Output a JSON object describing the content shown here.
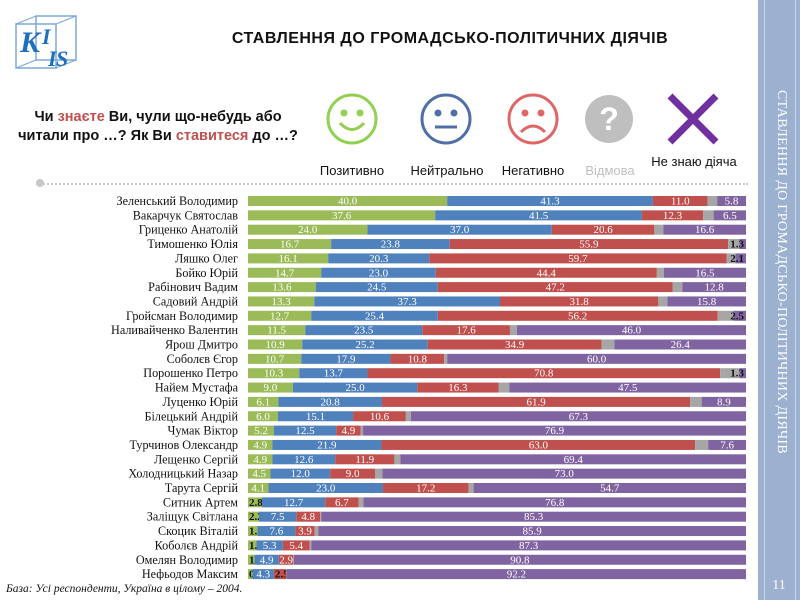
{
  "header": {
    "title": "СТАВЛЕННЯ ДО ГРОМАДСЬКО-ПОЛІТИЧНИХ ДІЯЧІВ"
  },
  "sidebar": {
    "text": "СТАВЛЕННЯ ДО ГРОМАДСЬКО-ПОЛІТИЧНИХ ДІЯЧІВ",
    "page_number": "11"
  },
  "logo": {
    "text": "KIIS"
  },
  "question": {
    "part1": "Чи ",
    "hl1": "знаєте",
    "part2": " Ви, чули що-небудь або читали про …? Як Ви ",
    "hl2": "ставитеся",
    "part3": " до …?"
  },
  "footnote": "База: Усі респонденти, Україна в цілому – 2004.",
  "colors": {
    "positive": "#9bbb59",
    "neutral": "#4f81bd",
    "negative": "#c0504d",
    "refuse": "#a6a6a6",
    "dontknow": "#8064a2",
    "face_positive": "#92d050",
    "face_neutral": "#4f6fa8",
    "face_negative": "#e06666",
    "face_refuse": "#bfbfbf",
    "face_dontknow": "#7030a0"
  },
  "chart_data": {
    "type": "bar",
    "orientation": "horizontal",
    "stacked": true,
    "xlim": [
      0,
      100
    ],
    "legend": [
      {
        "key": "positive",
        "label": "Позитивно",
        "icon": "smile-face-icon"
      },
      {
        "key": "neutral",
        "label": "Нейтрально",
        "icon": "neutral-face-icon"
      },
      {
        "key": "negative",
        "label": "Негативно",
        "icon": "sad-face-icon"
      },
      {
        "key": "refuse",
        "label": "Відмова",
        "icon": "question-mark-icon"
      },
      {
        "key": "dontknow",
        "label": "Не знаю діяча",
        "icon": "cross-icon"
      }
    ],
    "rows": [
      {
        "name": "Зеленський Володимир",
        "positive": 40.0,
        "neutral": 41.3,
        "negative": 11.0,
        "refuse": 1.9,
        "dontknow": 5.8
      },
      {
        "name": "Вакарчук Святослав",
        "positive": 37.6,
        "neutral": 41.5,
        "negative": 12.3,
        "refuse": 2.1,
        "dontknow": 6.5
      },
      {
        "name": "Гриценко Анатолій",
        "positive": 24.0,
        "neutral": 37.0,
        "negative": 20.6,
        "refuse": 1.8,
        "dontknow": 16.6
      },
      {
        "name": "Тимошенко Юлія",
        "positive": 16.7,
        "neutral": 23.8,
        "negative": 55.9,
        "refuse": 2.3,
        "dontknow": 1.3
      },
      {
        "name": "Ляшко Олег",
        "positive": 16.1,
        "neutral": 20.3,
        "negative": 59.7,
        "refuse": 1.8,
        "dontknow": 2.1
      },
      {
        "name": "Бойко Юрій",
        "positive": 14.7,
        "neutral": 23.0,
        "negative": 44.4,
        "refuse": 1.4,
        "dontknow": 16.5
      },
      {
        "name": "Рабінович Вадим",
        "positive": 13.6,
        "neutral": 24.5,
        "negative": 47.2,
        "refuse": 1.9,
        "dontknow": 12.8
      },
      {
        "name": "Садовий Андрій",
        "positive": 13.3,
        "neutral": 37.3,
        "negative": 31.8,
        "refuse": 1.8,
        "dontknow": 15.8
      },
      {
        "name": "Гройсман Володимир",
        "positive": 12.7,
        "neutral": 25.4,
        "negative": 56.2,
        "refuse": 3.2,
        "dontknow": 2.5
      },
      {
        "name": "Наливайченко Валентин",
        "positive": 11.5,
        "neutral": 23.5,
        "negative": 17.6,
        "refuse": 1.4,
        "dontknow": 46.0
      },
      {
        "name": "Ярош Дмитро",
        "positive": 10.9,
        "neutral": 25.2,
        "negative": 34.9,
        "refuse": 2.6,
        "dontknow": 26.4
      },
      {
        "name": "Соболєв Єгор",
        "positive": 10.7,
        "neutral": 17.9,
        "negative": 10.8,
        "refuse": 0.6,
        "dontknow": 60.0
      },
      {
        "name": "Порошенко Петро",
        "positive": 10.3,
        "neutral": 13.7,
        "negative": 70.8,
        "refuse": 3.9,
        "dontknow": 1.3
      },
      {
        "name": "Найем Мустафа",
        "positive": 9.0,
        "neutral": 25.0,
        "negative": 16.3,
        "refuse": 2.2,
        "dontknow": 47.5
      },
      {
        "name": "Луценко Юрій",
        "positive": 6.1,
        "neutral": 20.8,
        "negative": 61.9,
        "refuse": 2.3,
        "dontknow": 8.9
      },
      {
        "name": "Білецький Андрій",
        "positive": 6.0,
        "neutral": 15.1,
        "negative": 10.6,
        "refuse": 1.0,
        "dontknow": 67.3
      },
      {
        "name": "Чумак Віктор",
        "positive": 5.2,
        "neutral": 12.5,
        "negative": 4.9,
        "refuse": 0.5,
        "dontknow": 76.9
      },
      {
        "name": "Турчинов Олександр",
        "positive": 4.9,
        "neutral": 21.9,
        "negative": 63.0,
        "refuse": 2.6,
        "dontknow": 7.6
      },
      {
        "name": "Лещенко Сергій",
        "positive": 4.9,
        "neutral": 12.6,
        "negative": 11.9,
        "refuse": 1.2,
        "dontknow": 69.4
      },
      {
        "name": "Холодницький Назар",
        "positive": 4.5,
        "neutral": 12.0,
        "negative": 9.0,
        "refuse": 1.5,
        "dontknow": 73.0
      },
      {
        "name": "Тарута Сергій",
        "positive": 4.1,
        "neutral": 23.0,
        "negative": 17.2,
        "refuse": 1.0,
        "dontknow": 54.7
      },
      {
        "name": "Ситник Артем",
        "positive": 2.8,
        "neutral": 12.7,
        "negative": 6.7,
        "refuse": 1.0,
        "dontknow": 76.8
      },
      {
        "name": "Заліщук Світлана",
        "positive": 2.2,
        "neutral": 7.5,
        "negative": 4.8,
        "refuse": 0.2,
        "dontknow": 85.3
      },
      {
        "name": "Скоцик Віталій",
        "positive": 1.9,
        "neutral": 7.6,
        "negative": 3.9,
        "refuse": 0.7,
        "dontknow": 85.9
      },
      {
        "name": "Коболєв Андрій",
        "positive": 1.7,
        "neutral": 5.3,
        "negative": 5.4,
        "refuse": 0.3,
        "dontknow": 87.3
      },
      {
        "name": "Омелян Володимир",
        "positive": 1.3,
        "neutral": 4.9,
        "negative": 2.9,
        "refuse": 0.1,
        "dontknow": 90.8
      },
      {
        "name": "Нефьодов Максим",
        "positive": 0.9,
        "neutral": 4.3,
        "negative": 2.5,
        "refuse": 0.1,
        "dontknow": 92.2
      }
    ]
  }
}
